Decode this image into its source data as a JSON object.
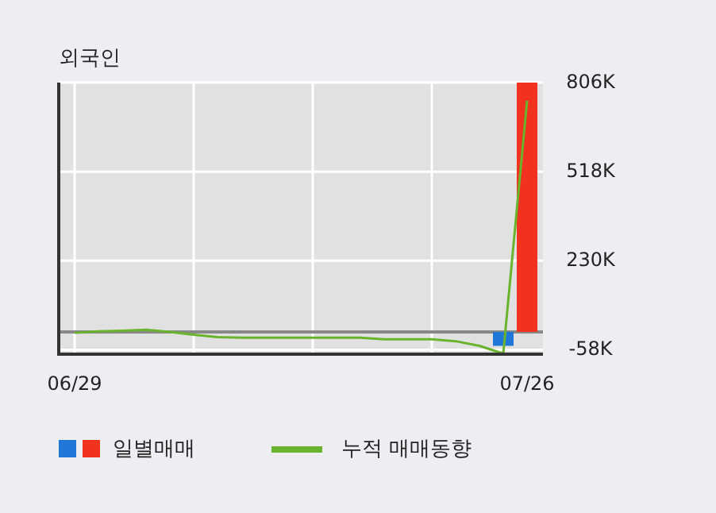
{
  "chart_data": {
    "type": "bar",
    "title": "외국인",
    "categories": [
      "06/29",
      null,
      null,
      null,
      null,
      null,
      null,
      null,
      null,
      null,
      null,
      null,
      null,
      null,
      null,
      null,
      null,
      null,
      null,
      "07/26"
    ],
    "series": [
      {
        "name": "일별매매",
        "colors": [
          "#1f77d8",
          "#1f77d8",
          "#1f77d8",
          "#1f77d8",
          "#1f77d8",
          "#1f77d8",
          "#1f77d8",
          "#1f77d8",
          "#1f77d8",
          "#1f77d8",
          "#1f77d8",
          "#1f77d8",
          "#1f77d8",
          "#1f77d8",
          "#1f77d8",
          "#1f77d8",
          "#1f77d8",
          "#1f77d8",
          "#1f77d8",
          "#f0321e"
        ],
        "values": [
          0,
          0,
          0,
          0,
          0,
          0,
          0,
          0,
          0,
          0,
          0,
          0,
          0,
          0,
          0,
          0,
          0,
          0,
          -45000,
          806000
        ]
      },
      {
        "name": "누적 매매동향",
        "type": "line",
        "color": "#6ab42d",
        "values": [
          -3000,
          2000,
          4000,
          7000,
          0,
          -9000,
          -17000,
          -19000,
          -19000,
          -19000,
          -19000,
          -19000,
          -19000,
          -24000,
          -24000,
          -24000,
          -30000,
          -45000,
          -70000,
          748000
        ]
      }
    ],
    "ylim": [
      -72000,
      806000
    ],
    "yticks": [
      {
        "value": 806000,
        "label": "806K"
      },
      {
        "value": 518000,
        "label": "518K"
      },
      {
        "value": 230000,
        "label": "230K"
      },
      {
        "value": -58000,
        "label": "-58K"
      }
    ],
    "grid": true,
    "legend": "bottom",
    "ref_lines": [
      {
        "axis": "y",
        "value": 0,
        "color": "#888888"
      }
    ]
  }
}
